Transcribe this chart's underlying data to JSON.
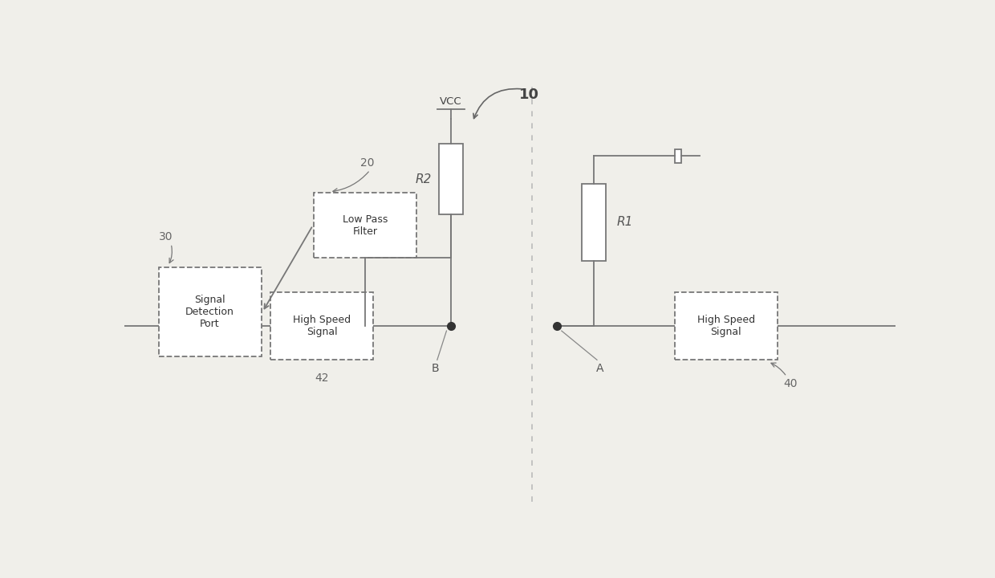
{
  "background_color": "#f0efea",
  "line_color": "#777777",
  "figsize": [
    12.4,
    7.2
  ],
  "dpi": 100,
  "label_10": "10",
  "label_30": "30",
  "label_20": "20",
  "label_40": "40",
  "label_42": "42",
  "label_A": "A",
  "label_B": "B",
  "label_R1": "R1",
  "label_R2": "R2",
  "label_VCC": "VCC"
}
